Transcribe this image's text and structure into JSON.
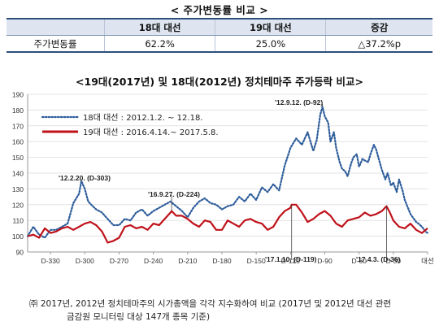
{
  "table": {
    "title": "< 주가변동률 비교 >",
    "headers": [
      "",
      "18대 대선",
      "19대 대선",
      "증감"
    ],
    "rows": [
      [
        "주가변동률",
        "62.2%",
        "25.0%",
        "△37.2%p"
      ]
    ]
  },
  "chart_data": {
    "type": "line",
    "title": "<19대(2017년) 및 18대(2012년) 정치테마주 주가등락 비교>",
    "xlabel": "",
    "ylabel": "",
    "xlim": [
      -350,
      0
    ],
    "ylim": [
      90,
      190
    ],
    "y_ticks": [
      90,
      100,
      110,
      120,
      130,
      140,
      150,
      160,
      170,
      180,
      190
    ],
    "x_ticks": [
      {
        "value": -330,
        "label": "D-330"
      },
      {
        "value": -300,
        "label": "D-300"
      },
      {
        "value": -270,
        "label": "D-270"
      },
      {
        "value": -240,
        "label": "D-240"
      },
      {
        "value": -210,
        "label": "D-210"
      },
      {
        "value": -180,
        "label": "D-180"
      },
      {
        "value": -150,
        "label": "D-150"
      },
      {
        "value": -120,
        "label": "D-120"
      },
      {
        "value": -90,
        "label": "D-90"
      },
      {
        "value": -60,
        "label": "D-60"
      },
      {
        "value": -30,
        "label": "D-30"
      },
      {
        "value": 0,
        "label": "대선"
      }
    ],
    "legend_position": "top-left",
    "series": [
      {
        "name": "18대 대선 : 2012.1.2. ~ 12.18.",
        "color": "#2e5d9b",
        "style": "dotted",
        "x": [
          -350,
          -345,
          -340,
          -335,
          -330,
          -325,
          -320,
          -315,
          -310,
          -305,
          -303,
          -300,
          -297,
          -293,
          -290,
          -285,
          -280,
          -275,
          -270,
          -265,
          -260,
          -255,
          -250,
          -245,
          -240,
          -235,
          -230,
          -225,
          -220,
          -215,
          -210,
          -205,
          -200,
          -195,
          -190,
          -185,
          -180,
          -175,
          -170,
          -165,
          -160,
          -155,
          -150,
          -145,
          -140,
          -135,
          -130,
          -125,
          -120,
          -115,
          -110,
          -105,
          -100,
          -97,
          -94,
          -92,
          -90,
          -87,
          -85,
          -82,
          -80,
          -77,
          -75,
          -72,
          -70,
          -67,
          -65,
          -62,
          -60,
          -57,
          -55,
          -52,
          -50,
          -47,
          -45,
          -42,
          -40,
          -37,
          -35,
          -32,
          -30,
          -27,
          -25,
          -22,
          -20,
          -15,
          -10,
          -8,
          -5,
          -2,
          0
        ],
        "y": [
          100,
          106,
          101,
          99,
          104,
          104,
          106,
          108,
          121,
          127,
          135,
          130,
          122,
          119,
          117,
          115,
          111,
          107,
          107,
          111,
          110,
          115,
          117,
          113,
          116,
          118,
          120,
          122,
          119,
          116,
          112,
          118,
          122,
          124,
          121,
          120,
          117,
          119,
          120,
          125,
          122,
          127,
          123,
          131,
          128,
          133,
          129,
          145,
          156,
          162,
          158,
          166,
          154,
          161,
          177,
          182,
          176,
          172,
          160,
          166,
          156,
          147,
          143,
          141,
          138,
          146,
          150,
          152,
          144,
          149,
          148,
          147,
          152,
          158,
          155,
          147,
          142,
          136,
          140,
          132,
          134,
          128,
          136,
          129,
          123,
          114,
          109,
          108,
          106,
          103,
          102
        ]
      },
      {
        "name": "19대 대선 : 2016.4.14.~ 2017.5.8.",
        "color": "#c0121a",
        "style": "solid",
        "x": [
          -350,
          -345,
          -340,
          -335,
          -330,
          -325,
          -320,
          -315,
          -310,
          -305,
          -300,
          -295,
          -290,
          -285,
          -280,
          -275,
          -270,
          -265,
          -260,
          -255,
          -250,
          -245,
          -240,
          -235,
          -230,
          -225,
          -224,
          -220,
          -215,
          -210,
          -205,
          -200,
          -195,
          -190,
          -185,
          -180,
          -175,
          -170,
          -165,
          -160,
          -155,
          -150,
          -145,
          -140,
          -135,
          -130,
          -125,
          -120,
          -119,
          -115,
          -110,
          -105,
          -100,
          -95,
          -90,
          -85,
          -80,
          -75,
          -70,
          -65,
          -60,
          -55,
          -50,
          -45,
          -40,
          -36,
          -33,
          -30,
          -25,
          -20,
          -15,
          -10,
          -5,
          0
        ],
        "y": [
          100,
          101,
          99,
          105,
          102,
          103,
          105,
          106,
          104,
          106,
          108,
          109,
          107,
          103,
          96,
          97,
          99,
          106,
          107,
          105,
          106,
          104,
          108,
          107,
          111,
          115,
          116,
          113,
          113,
          111,
          108,
          106,
          110,
          109,
          104,
          104,
          110,
          108,
          106,
          110,
          111,
          109,
          108,
          104,
          106,
          112,
          116,
          118,
          120,
          120,
          115,
          109,
          111,
          114,
          116,
          113,
          108,
          106,
          110,
          111,
          112,
          115,
          113,
          114,
          116,
          119,
          115,
          110,
          106,
          105,
          108,
          104,
          102,
          105
        ]
      }
    ],
    "annotations": [
      {
        "text": "'12.2.20. (D-303)",
        "x": -303,
        "y": 135,
        "series": 0
      },
      {
        "text": "'12.9.12. (D-92)",
        "x": -92,
        "y": 182,
        "series": 0
      },
      {
        "text": "'16.9.27. (D-224)",
        "x": -224,
        "y": 116,
        "series": 1
      },
      {
        "text": "'17.1.10. (D-119)",
        "x": -119,
        "y": 120,
        "series": 1
      },
      {
        "text": "'17.4.3. (D-36)",
        "x": -36,
        "y": 119,
        "series": 1
      }
    ]
  },
  "footnote": {
    "line1": "㈜ 2017년, 2012년 정치테마주의 시가총액을 각각 지수화하여 비교 (2017년 및 2012년 대선 관련",
    "line2": "금감원 모니터링 대상 147개 종목 기준)"
  }
}
